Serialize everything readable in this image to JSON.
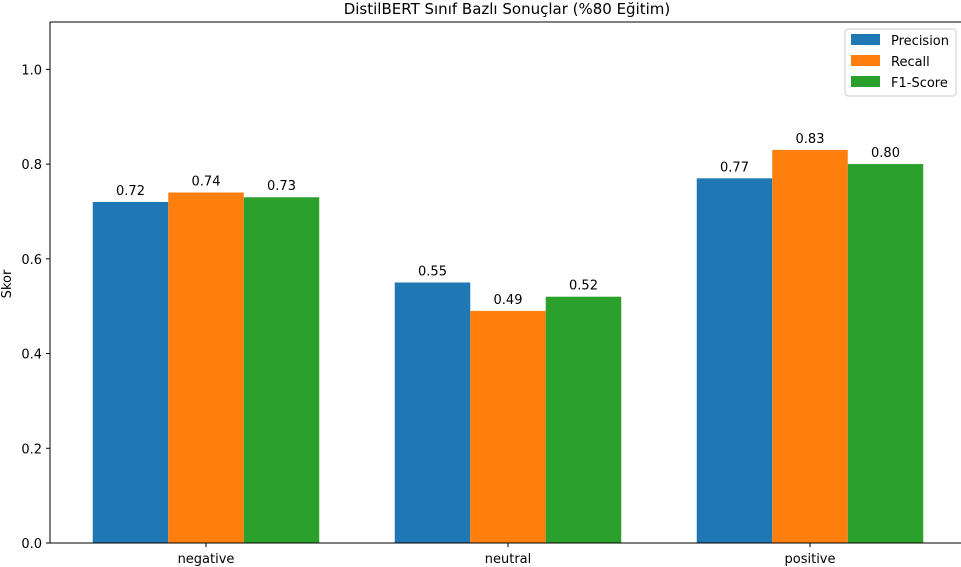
{
  "chart_data": {
    "type": "bar",
    "title": "DistilBERT Sınıf Bazlı Sonuçlar (%80 Eğitim)",
    "xlabel": "",
    "ylabel": "Skor",
    "categories": [
      "negative",
      "neutral",
      "positive"
    ],
    "ylim": [
      0,
      1.1
    ],
    "yticks": [
      "0.0",
      "0.2",
      "0.4",
      "0.6",
      "0.8",
      "1.0"
    ],
    "grid": false,
    "legend_position": "top-right",
    "series": [
      {
        "name": "Precision",
        "color": "#1f77b4",
        "values": [
          0.72,
          0.55,
          0.77
        ],
        "labels": [
          "0.72",
          "0.55",
          "0.77"
        ]
      },
      {
        "name": "Recall",
        "color": "#ff7f0e",
        "values": [
          0.74,
          0.49,
          0.83
        ],
        "labels": [
          "0.74",
          "0.49",
          "0.83"
        ]
      },
      {
        "name": "F1-Score",
        "color": "#2ca02c",
        "values": [
          0.73,
          0.52,
          0.8
        ],
        "labels": [
          "0.73",
          "0.52",
          "0.80"
        ]
      }
    ]
  }
}
